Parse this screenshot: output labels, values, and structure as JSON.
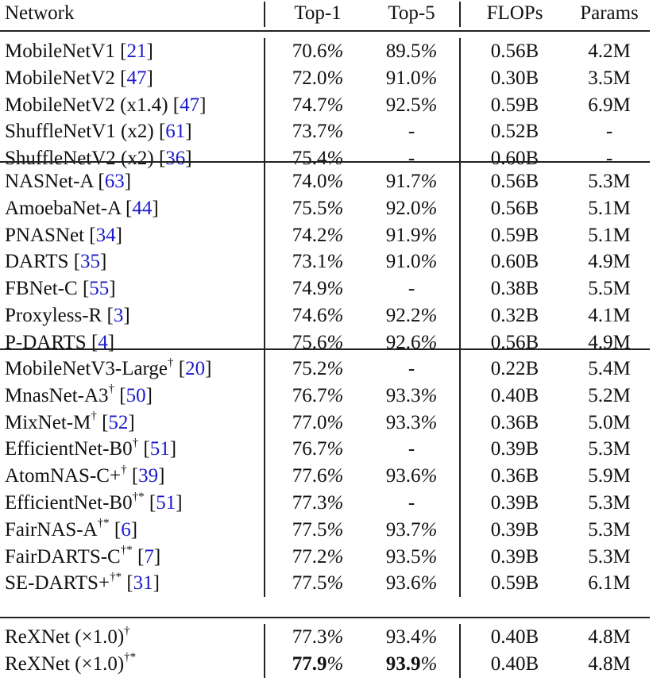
{
  "table": {
    "headers": {
      "network": "Network",
      "top1": "Top-1",
      "top5": "Top-5",
      "flops": "FLOPs",
      "params": "Params"
    },
    "groups": [
      {
        "rows": [
          {
            "name": "MobileNetV1",
            "sup": "",
            "ref": "21",
            "top1": "70.6",
            "top5": "89.5",
            "flops": "0.56B",
            "params": "4.2M"
          },
          {
            "name": "MobileNetV2",
            "sup": "",
            "ref": "47",
            "top1": "72.0",
            "top5": "91.0",
            "flops": "0.30B",
            "params": "3.5M"
          },
          {
            "name": "MobileNetV2 (x1.4)",
            "sup": "",
            "ref": "47",
            "top1": "74.7",
            "top5": "92.5",
            "flops": "0.59B",
            "params": "6.9M"
          },
          {
            "name": "ShuffleNetV1 (x2)",
            "sup": "",
            "ref": "61",
            "top1": "73.7",
            "top5": "-",
            "flops": "0.52B",
            "params": "-"
          },
          {
            "name": "ShuffleNetV2 (x2)",
            "sup": "",
            "ref": "36",
            "top1": "75.4",
            "top5": "-",
            "flops": "0.60B",
            "params": "-"
          }
        ]
      },
      {
        "rows": [
          {
            "name": "NASNet-A",
            "sup": "",
            "ref": "63",
            "top1": "74.0",
            "top5": "91.7",
            "flops": "0.56B",
            "params": "5.3M"
          },
          {
            "name": "AmoebaNet-A",
            "sup": "",
            "ref": "44",
            "top1": "75.5",
            "top5": "92.0",
            "flops": "0.56B",
            "params": "5.1M"
          },
          {
            "name": "PNASNet",
            "sup": "",
            "ref": "34",
            "top1": "74.2",
            "top5": "91.9",
            "flops": "0.59B",
            "params": "5.1M"
          },
          {
            "name": "DARTS",
            "sup": "",
            "ref": "35",
            "top1": "73.1",
            "top5": "91.0",
            "flops": "0.60B",
            "params": "4.9M"
          },
          {
            "name": "FBNet-C",
            "sup": "",
            "ref": "55",
            "top1": "74.9",
            "top5": "-",
            "flops": "0.38B",
            "params": "5.5M"
          },
          {
            "name": "Proxyless-R",
            "sup": "",
            "ref": "3",
            "top1": "74.6",
            "top5": "92.2",
            "flops": "0.32B",
            "params": "4.1M"
          },
          {
            "name": "P-DARTS",
            "sup": "",
            "ref": "4",
            "top1": "75.6",
            "top5": "92.6",
            "flops": "0.56B",
            "params": "4.9M"
          }
        ]
      },
      {
        "rows": [
          {
            "name": "MobileNetV3-Large",
            "sup": "†",
            "ref": "20",
            "top1": "75.2",
            "top5": "-",
            "flops": "0.22B",
            "params": "5.4M"
          },
          {
            "name": "MnasNet-A3",
            "sup": "†",
            "ref": "50",
            "top1": "76.7",
            "top5": "93.3",
            "flops": "0.40B",
            "params": "5.2M"
          },
          {
            "name": "MixNet-M",
            "sup": "†",
            "ref": "52",
            "top1": "77.0",
            "top5": "93.3",
            "flops": "0.36B",
            "params": "5.0M"
          },
          {
            "name": "EfficientNet-B0",
            "sup": "†",
            "ref": "51",
            "top1": "76.7",
            "top5": "-",
            "flops": "0.39B",
            "params": "5.3M"
          },
          {
            "name": "AtomNAS-C+",
            "sup": "†",
            "ref": "39",
            "top1": "77.6",
            "top5": "93.6",
            "flops": "0.36B",
            "params": "5.9M"
          },
          {
            "name": "EfficientNet-B0",
            "sup": "†*",
            "ref": "51",
            "top1": "77.3",
            "top5": "-",
            "flops": "0.39B",
            "params": "5.3M"
          },
          {
            "name": "FairNAS-A",
            "sup": "†*",
            "ref": "6",
            "top1": "77.5",
            "top5": "93.7",
            "flops": "0.39B",
            "params": "5.3M"
          },
          {
            "name": "FairDARTS-C",
            "sup": "†*",
            "ref": "7",
            "top1": "77.2",
            "top5": "93.5",
            "flops": "0.39B",
            "params": "5.3M"
          },
          {
            "name": "SE-DARTS+",
            "sup": "†*",
            "ref": "31",
            "top1": "77.5",
            "top5": "93.6",
            "flops": "0.59B",
            "params": "6.1M"
          }
        ]
      },
      {
        "rows": [
          {
            "name": "ReXNet (×1.0)",
            "sup": "†",
            "ref": "",
            "top1": "77.3",
            "top5": "93.4",
            "flops": "0.40B",
            "params": "4.8M"
          },
          {
            "name": "ReXNet (×1.0)",
            "sup": "†*",
            "ref": "",
            "top1": "77.9",
            "top5": "93.9",
            "flops": "0.40B",
            "params": "4.8M",
            "bold": true
          }
        ]
      }
    ],
    "percent_sign": "%",
    "colors": {
      "ref": "#1a1acc",
      "text": "#111111",
      "rule": "#222222"
    }
  }
}
